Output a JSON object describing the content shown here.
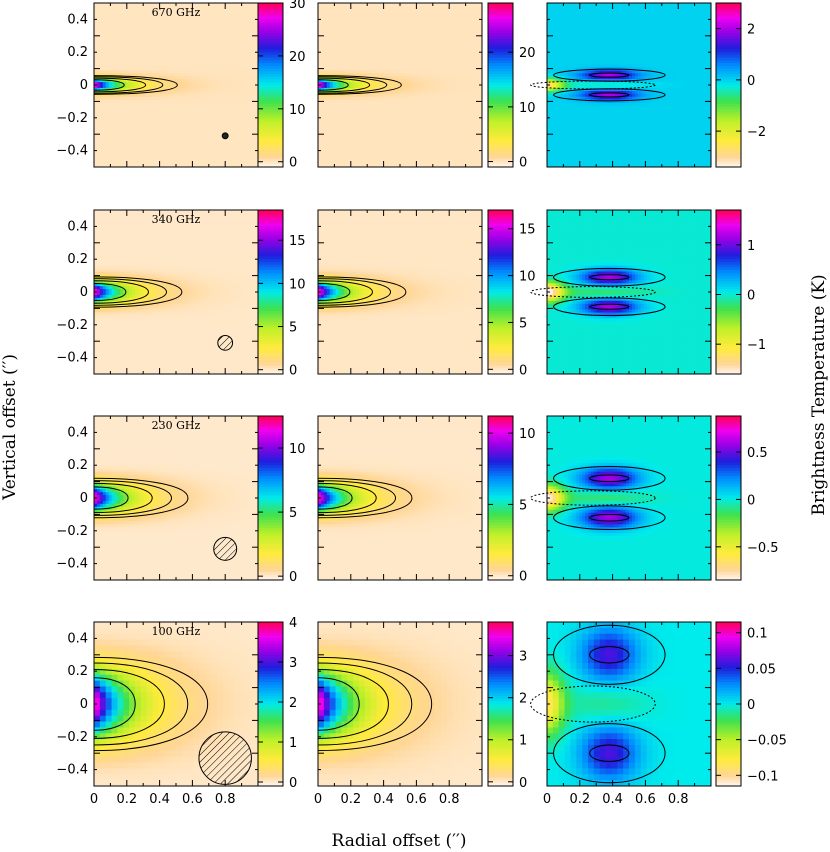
{
  "chart_data": {
    "type": "heatmap",
    "xlabel": "Radial offset (′′)",
    "ylabel": "Vertical offset (′′)",
    "colorbar_label": "Brightness Temperature (K)",
    "xlim": [
      0,
      1.0
    ],
    "ylim": [
      -0.5,
      0.5
    ],
    "x_ticks": [
      "0",
      "0.2",
      "0.4",
      "0.6",
      "0.8"
    ],
    "y_ticks": [
      "0.4",
      "0.2",
      "0",
      "−0.2",
      "−0.4"
    ],
    "rows": [
      {
        "frequency": "670 GHz",
        "panels": [
          {
            "column": "data",
            "cmin": -1,
            "cmax": 30,
            "cticks": [
              "30",
              "20",
              "10",
              "0"
            ],
            "cvals": [
              30,
              20,
              10,
              0
            ],
            "peak_T": 30,
            "width": 0.04,
            "extent": 0.55,
            "beam": 0.018,
            "hatch": false
          },
          {
            "column": "model",
            "cmin": -1,
            "cmax": 29,
            "cticks": [
              "20",
              "10",
              "0"
            ],
            "cvals": [
              20,
              10,
              0
            ],
            "peak_T": 29,
            "width": 0.04,
            "extent": 0.55
          },
          {
            "column": "residual",
            "cmin": -3.4,
            "cmax": 3.0,
            "cticks": [
              "2",
              "0",
              "−2"
            ],
            "cvals": [
              2,
              0,
              -2
            ],
            "amp": 2.0,
            "width": 0.04
          }
        ]
      },
      {
        "frequency": "340 GHz",
        "panels": [
          {
            "column": "data",
            "cmin": -0.5,
            "cmax": 18.5,
            "cticks": [
              "15",
              "10",
              "5",
              "0"
            ],
            "cvals": [
              15,
              10,
              5,
              0
            ],
            "peak_T": 18.5,
            "width": 0.065,
            "extent": 0.58,
            "beam": 0.045,
            "hatch": true
          },
          {
            "column": "model",
            "cmin": -0.5,
            "cmax": 17,
            "cticks": [
              "15",
              "10",
              "5",
              "0"
            ],
            "cvals": [
              15,
              10,
              5,
              0
            ],
            "peak_T": 17,
            "width": 0.065,
            "extent": 0.58
          },
          {
            "column": "residual",
            "cmin": -1.6,
            "cmax": 1.7,
            "cticks": [
              "1",
              "0",
              "−1"
            ],
            "cvals": [
              1,
              0,
              -1
            ],
            "amp": 1.2,
            "width": 0.06
          }
        ]
      },
      {
        "frequency": "230 GHz",
        "panels": [
          {
            "column": "data",
            "cmin": -0.3,
            "cmax": 12.5,
            "cticks": [
              "10",
              "5",
              "0"
            ],
            "cvals": [
              10,
              5,
              0
            ],
            "peak_T": 12.5,
            "width": 0.085,
            "extent": 0.62,
            "beam": 0.07,
            "hatch": true
          },
          {
            "column": "model",
            "cmin": -0.3,
            "cmax": 11.2,
            "cticks": [
              "10",
              "5",
              "0"
            ],
            "cvals": [
              10,
              5,
              0
            ],
            "peak_T": 11.2,
            "width": 0.085,
            "extent": 0.62
          },
          {
            "column": "residual",
            "cmin": -0.85,
            "cmax": 0.88,
            "cticks": [
              "0.5",
              "0",
              "−0.5"
            ],
            "cvals": [
              0.5,
              0,
              -0.5
            ],
            "amp": 0.6,
            "width": 0.08
          }
        ]
      },
      {
        "frequency": "100 GHz",
        "panels": [
          {
            "column": "data",
            "cmin": -0.1,
            "cmax": 4.0,
            "cticks": [
              "4",
              "3",
              "2",
              "1",
              "0"
            ],
            "cvals": [
              4,
              3,
              2,
              1,
              0
            ],
            "peak_T": 4.0,
            "width": 0.2,
            "extent": 0.75,
            "beam": 0.16,
            "hatch": true
          },
          {
            "column": "model",
            "cmin": -0.1,
            "cmax": 3.8,
            "cticks": [
              "3",
              "2",
              "1",
              "0"
            ],
            "cvals": [
              3,
              2,
              1,
              0
            ],
            "peak_T": 3.8,
            "width": 0.2,
            "extent": 0.75
          },
          {
            "column": "residual",
            "cmin": -0.115,
            "cmax": 0.115,
            "cticks": [
              "0.1",
              "0.05",
              "0",
              "−0.05",
              "−0.1"
            ],
            "cvals": [
              0.1,
              0.05,
              0,
              -0.05,
              -0.1
            ],
            "amp": 0.06,
            "width": 0.2
          }
        ]
      }
    ]
  }
}
